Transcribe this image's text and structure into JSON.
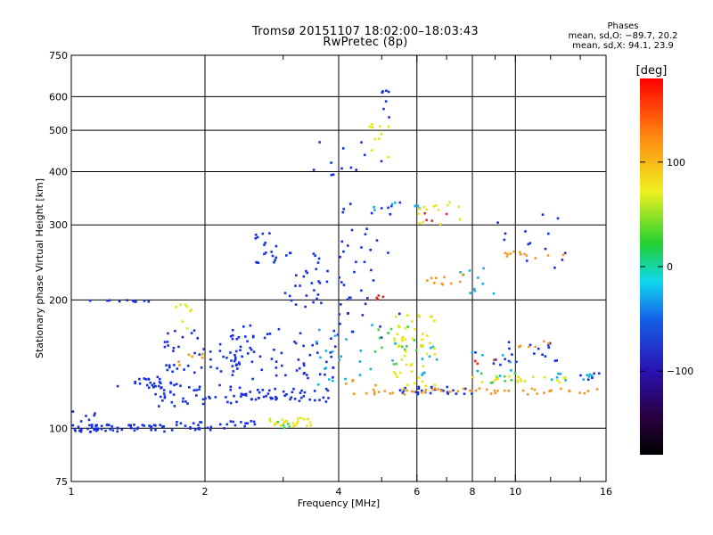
{
  "header": {
    "title_line1": "Tromsø 20151107 18:02:00–18:03:43",
    "title_line2": "RwPretec (8p)",
    "stats_heading": "Phases",
    "stats_o": "mean, sd,O: −89.7, 20.2",
    "stats_x": "mean, sd,X:  94.1, 23.9"
  },
  "chart_data": {
    "type": "scatter",
    "title": "Tromsø 20151107 18:02:00–18:03:43",
    "subtitle": "RwPretec (8p)",
    "xlabel": "Frequency [MHz]",
    "ylabel": "Stationary phase Virtual Height [km]",
    "xscale": "log",
    "yscale": "log",
    "xlim": [
      1,
      16
    ],
    "ylim": [
      75,
      750
    ],
    "x_ticks": [
      1,
      2,
      4,
      6,
      8,
      10,
      16
    ],
    "x_tick_labels": [
      "1",
      "2",
      "4",
      "6",
      "8",
      "10",
      "16"
    ],
    "x_minor_ticks": [
      3,
      5,
      7,
      9,
      12,
      14
    ],
    "y_ticks": [
      75,
      100,
      200,
      300,
      400,
      500,
      600,
      750
    ],
    "y_tick_labels": [
      "75",
      "100",
      "200",
      "300",
      "400",
      "500",
      "600",
      "750"
    ],
    "grid": true,
    "colorbar": {
      "label": "[deg]",
      "range": [
        -180,
        180
      ],
      "ticks": [
        100,
        0,
        -100
      ],
      "tick_labels": [
        "100",
        "0",
        "−100"
      ]
    },
    "series": [
      {
        "phase_deg": -100,
        "color": "#1530e0",
        "clusters": [
          {
            "f": [
              1.0,
              1.7
            ],
            "h": [
              98,
              102
            ],
            "n": 60
          },
          {
            "f": [
              1.7,
              2.6
            ],
            "h": [
              99,
              104
            ],
            "n": 30
          },
          {
            "f": [
              1.0,
              1.15
            ],
            "h": [
              100,
              110
            ],
            "n": 6
          },
          {
            "f": [
              1.25,
              1.6
            ],
            "h": [
              124,
              132
            ],
            "n": 22
          },
          {
            "f": [
              1.5,
              2.3
            ],
            "h": [
              112,
              128
            ],
            "n": 40
          },
          {
            "f": [
              1.6,
              2.4
            ],
            "h": [
              135,
              170
            ],
            "n": 50
          },
          {
            "f": [
              2.2,
              3.8
            ],
            "h": [
              115,
              125
            ],
            "n": 55
          },
          {
            "f": [
              2.3,
              4.0
            ],
            "h": [
              130,
              175
            ],
            "n": 65
          },
          {
            "f": [
              3.0,
              3.8
            ],
            "h": [
              180,
              260
            ],
            "n": 30
          },
          {
            "f": [
              2.6,
              2.9
            ],
            "h": [
              240,
              290
            ],
            "n": 18
          },
          {
            "f": [
              1.1,
              1.5
            ],
            "h": [
              198,
              200
            ],
            "n": 10
          },
          {
            "f": [
              3.5,
              5.0
            ],
            "h": [
              380,
              480
            ],
            "n": 12
          },
          {
            "f": [
              4.0,
              5.5
            ],
            "h": [
              160,
              340
            ],
            "n": 45
          },
          {
            "f": [
              5.0,
              5.2
            ],
            "h": [
              530,
              620
            ],
            "n": 7
          },
          {
            "f": [
              5.5,
              8.0
            ],
            "h": [
              120,
              125
            ],
            "n": 25
          },
          {
            "f": [
              8.0,
              13.0
            ],
            "h": [
              140,
              160
            ],
            "n": 20
          },
          {
            "f": [
              9.0,
              13.0
            ],
            "h": [
              230,
              320
            ],
            "n": 14
          },
          {
            "f": [
              14.0,
              15.5
            ],
            "h": [
              130,
              135
            ],
            "n": 6
          }
        ]
      },
      {
        "phase_deg": -40,
        "color": "#16b0e0",
        "clusters": [
          {
            "f": [
              3.5,
              5.5
            ],
            "h": [
              125,
              175
            ],
            "n": 22
          },
          {
            "f": [
              6.0,
              10.0
            ],
            "h": [
              130,
              160
            ],
            "n": 16
          },
          {
            "f": [
              7.5,
              9.0
            ],
            "h": [
              200,
              260
            ],
            "n": 10
          },
          {
            "f": [
              12.0,
              15.5
            ],
            "h": [
              128,
              135
            ],
            "n": 10
          },
          {
            "f": [
              4.8,
              6.2
            ],
            "h": [
              320,
              340
            ],
            "n": 8
          }
        ]
      },
      {
        "phase_deg": 20,
        "color": "#3ad24a",
        "clusters": [
          {
            "f": [
              4.8,
              6.0
            ],
            "h": [
              140,
              175
            ],
            "n": 14
          },
          {
            "f": [
              8.0,
              10.0
            ],
            "h": [
              125,
              135
            ],
            "n": 8
          },
          {
            "f": [
              2.9,
              3.1
            ],
            "h": [
              100,
              104
            ],
            "n": 6
          }
        ]
      },
      {
        "phase_deg": 100,
        "color": "#e6e614",
        "clusters": [
          {
            "f": [
              2.8,
              3.5
            ],
            "h": [
              101,
              106
            ],
            "n": 22
          },
          {
            "f": [
              5.3,
              6.6
            ],
            "h": [
              125,
              185
            ],
            "n": 50
          },
          {
            "f": [
              6.0,
              7.5
            ],
            "h": [
              300,
              340
            ],
            "n": 14
          },
          {
            "f": [
              4.6,
              5.2
            ],
            "h": [
              430,
              520
            ],
            "n": 10
          },
          {
            "f": [
              1.7,
              1.9
            ],
            "h": [
              170,
              195
            ],
            "n": 8
          },
          {
            "f": [
              8.0,
              13.0
            ],
            "h": [
              128,
              133
            ],
            "n": 20
          }
        ]
      },
      {
        "phase_deg": 140,
        "color": "#f09a1e",
        "clusters": [
          {
            "f": [
              5.0,
              15.5
            ],
            "h": [
              120,
              124
            ],
            "n": 45
          },
          {
            "f": [
              9.0,
              13.0
            ],
            "h": [
              250,
              260
            ],
            "n": 12
          },
          {
            "f": [
              6.0,
              8.0
            ],
            "h": [
              215,
              230
            ],
            "n": 10
          },
          {
            "f": [
              4.0,
              5.0
            ],
            "h": [
              120,
              130
            ],
            "n": 10
          },
          {
            "f": [
              1.7,
              2.0
            ],
            "h": [
              140,
              150
            ],
            "n": 6
          },
          {
            "f": [
              10.0,
              12.0
            ],
            "h": [
              155,
              160
            ],
            "n": 6
          }
        ]
      },
      {
        "phase_deg": 175,
        "color": "#e82828",
        "clusters": [
          {
            "f": [
              4.8,
              5.1
            ],
            "h": [
              200,
              206
            ],
            "n": 4
          },
          {
            "f": [
              6.2,
              7.2
            ],
            "h": [
              305,
              320
            ],
            "n": 4
          },
          {
            "f": [
              8.0,
              9.0
            ],
            "h": [
              140,
              150
            ],
            "n": 3
          }
        ]
      }
    ]
  }
}
